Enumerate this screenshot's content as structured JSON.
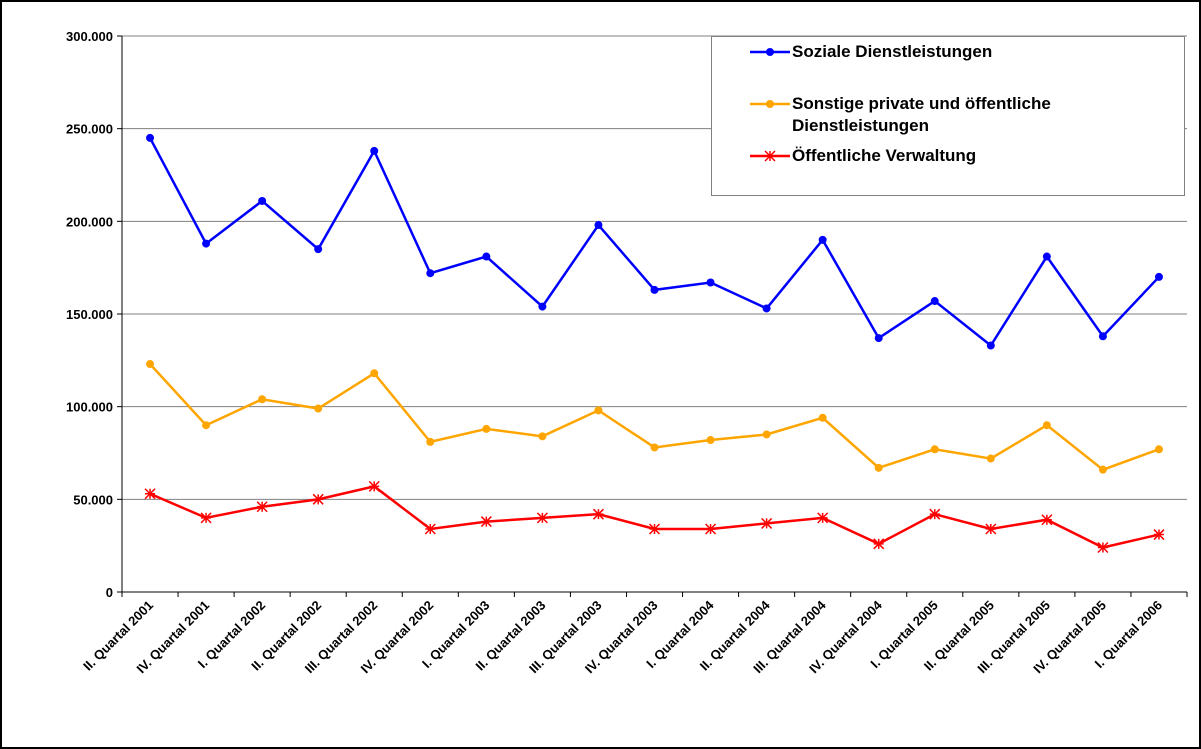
{
  "chart_data": {
    "type": "line",
    "categories": [
      "II. Quartal 2001",
      "IV. Quartal 2001",
      "I. Quartal 2002",
      "II. Quartal 2002",
      "III. Quartal 2002",
      "IV. Quartal 2002",
      "I. Quartal 2003",
      "II. Quartal 2003",
      "III. Quartal 2003",
      "IV. Quartal 2003",
      "I. Quartal 2004",
      "II. Quartal 2004",
      "III. Quartal 2004",
      "IV. Quartal 2004",
      "I. Quartal 2005",
      "II. Quartal 2005",
      "III. Quartal 2005",
      "IV. Quartal 2005",
      "I. Quartal 2006"
    ],
    "series": [
      {
        "name": "Soziale Dienstleistungen",
        "color": "#0000ff",
        "marker": "circle",
        "values": [
          245000,
          188000,
          211000,
          185000,
          238000,
          172000,
          181000,
          154000,
          198000,
          163000,
          167000,
          153000,
          190000,
          137000,
          157000,
          133000,
          181000,
          138000,
          170000
        ]
      },
      {
        "name": "Sonstige private und öffentliche Dienstleistungen",
        "color": "#ffa500",
        "marker": "circle",
        "values": [
          123000,
          90000,
          104000,
          99000,
          118000,
          81000,
          88000,
          84000,
          98000,
          78000,
          82000,
          85000,
          94000,
          67000,
          77000,
          72000,
          90000,
          66000,
          77000
        ]
      },
      {
        "name": "Öffentliche Verwaltung",
        "color": "#ff0000",
        "marker": "star",
        "values": [
          53000,
          40000,
          46000,
          50000,
          57000,
          34000,
          38000,
          40000,
          42000,
          34000,
          34000,
          37000,
          40000,
          26000,
          42000,
          34000,
          39000,
          24000,
          31000
        ]
      }
    ],
    "ylim": [
      0,
      300000
    ],
    "yticks": [
      0,
      {
        "value": 50000,
        "label": "50.000"
      },
      {
        "value": 100000,
        "label": "100.000"
      },
      {
        "value": 150000,
        "label": "150.000"
      },
      {
        "value": 200000,
        "label": "200.000"
      },
      {
        "value": 250000,
        "label": "250.000"
      },
      {
        "value": 300000,
        "label": "300.000"
      }
    ],
    "grid": true,
    "legend": "top-right"
  }
}
